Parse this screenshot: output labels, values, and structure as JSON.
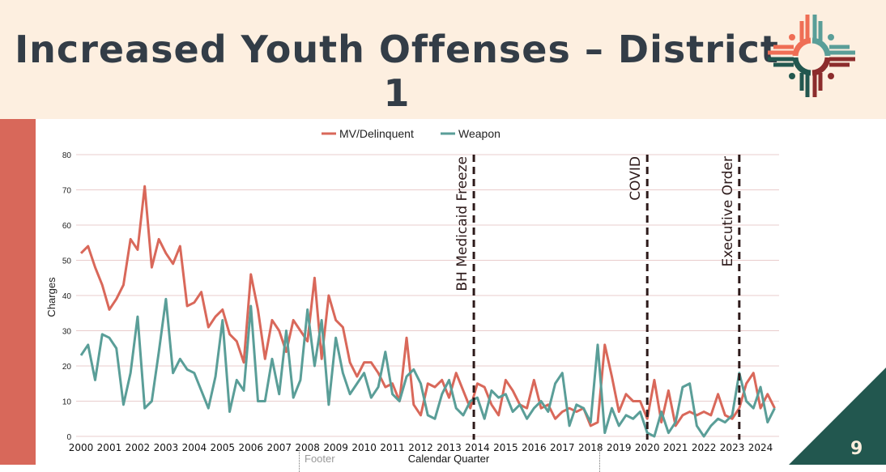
{
  "slide": {
    "title": "Increased Youth Offenses – District 1",
    "page_number": "9",
    "footer_placeholder": "Footer",
    "colors": {
      "header_bg": "#fdefe0",
      "left_bar": "#d8685a",
      "corner": "#22574f"
    }
  },
  "logo": {
    "type": "zia-sun",
    "colors": [
      "#ef6e55",
      "#5a9e98",
      "#22574f",
      "#8c2c2c"
    ]
  },
  "chart_data": {
    "type": "line",
    "x_range": [
      "2000 Q1",
      "2024 Q3"
    ],
    "xlabel": "Calendar Quarter",
    "ylabel": "Charges",
    "ylim": [
      0,
      80
    ],
    "yticks": [
      0,
      10,
      20,
      30,
      40,
      50,
      60,
      70,
      80
    ],
    "xtick_labels": [
      "2000",
      "2001",
      "2002",
      "2003",
      "2004",
      "2005",
      "2006",
      "2007",
      "2008",
      "2009",
      "2010",
      "2011",
      "2012",
      "2013",
      "2014",
      "2015",
      "2016",
      "2017",
      "2018",
      "2019",
      "2020",
      "2021",
      "2022",
      "2023",
      "2024"
    ],
    "grid": true,
    "legend": "top",
    "series": [
      {
        "name": "MV/Delinquent",
        "color": "#d9685a",
        "values": [
          52,
          54,
          48,
          43,
          36,
          39,
          43,
          56,
          53,
          71,
          48,
          56,
          52,
          49,
          54,
          37,
          38,
          41,
          31,
          34,
          36,
          29,
          27,
          21,
          46,
          36,
          22,
          33,
          30,
          24,
          33,
          30,
          27,
          45,
          22,
          40,
          33,
          31,
          21,
          17,
          21,
          21,
          18,
          14,
          15,
          10,
          28,
          9,
          6,
          15,
          14,
          16,
          11,
          18,
          13,
          8,
          15,
          14,
          9,
          6,
          16,
          13,
          9,
          8,
          16,
          8,
          9,
          5,
          7,
          8,
          7,
          8,
          3,
          4,
          26,
          17,
          7,
          12,
          10,
          10,
          5,
          16,
          4,
          13,
          3,
          6,
          7,
          6,
          7,
          6,
          12,
          6,
          5,
          8,
          15,
          18,
          8,
          12,
          8
        ]
      },
      {
        "name": "Weapon",
        "color": "#5a9e98",
        "values": [
          23,
          26,
          16,
          29,
          28,
          25,
          9,
          18,
          34,
          8,
          10,
          24,
          39,
          18,
          22,
          19,
          18,
          13,
          8,
          17,
          33,
          7,
          16,
          13,
          37,
          10,
          10,
          22,
          12,
          30,
          11,
          16,
          36,
          20,
          33,
          9,
          28,
          18,
          12,
          15,
          18,
          11,
          14,
          24,
          12,
          10,
          17,
          19,
          15,
          6,
          5,
          12,
          16,
          8,
          6,
          10,
          11,
          5,
          13,
          11,
          12,
          7,
          9,
          5,
          8,
          10,
          7,
          15,
          18,
          3,
          9,
          8,
          4,
          26,
          1,
          8,
          3,
          6,
          5,
          7,
          1,
          0,
          7,
          1,
          4,
          14,
          15,
          3,
          0,
          3,
          5,
          4,
          6,
          18,
          10,
          8,
          14,
          4,
          8
        ]
      }
    ],
    "annotations": [
      {
        "label": "BH Medicaid Freeze",
        "x": 2013.875
      },
      {
        "label": "COVID",
        "x": 2020.0
      },
      {
        "label": "Executive Order",
        "x": 2023.25
      }
    ]
  }
}
